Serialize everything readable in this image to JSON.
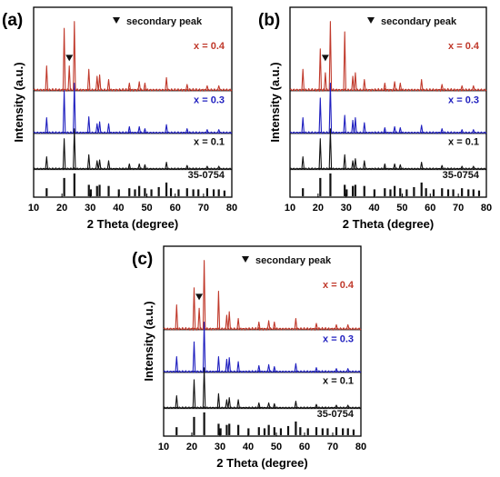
{
  "legend_marker": "▼",
  "chart_data": [
    {
      "type": "line",
      "panel_label": "(a)",
      "secondary_label": "secondary peak",
      "xlabel": "2 Theta (degree)",
      "ylabel": "Intensity (a.u.)",
      "xlim": [
        10,
        80
      ],
      "x_ticks": [
        "10",
        "20",
        "30",
        "40",
        "50",
        "60",
        "70",
        "80"
      ],
      "secondary_peak_x": 22.6,
      "series": [
        {
          "name": "x = 0.4",
          "color": "#c0392b",
          "peaks": [
            [
              14.6,
              0.35
            ],
            [
              20.8,
              0.9
            ],
            [
              22.6,
              0.35
            ],
            [
              24.4,
              1.0
            ],
            [
              29.5,
              0.3
            ],
            [
              32.4,
              0.2
            ],
            [
              33.3,
              0.22
            ],
            [
              36.5,
              0.15
            ],
            [
              43.8,
              0.1
            ],
            [
              47.3,
              0.12
            ],
            [
              49.3,
              0.1
            ],
            [
              56.9,
              0.18
            ],
            [
              64.2,
              0.08
            ],
            [
              71.3,
              0.06
            ],
            [
              75.4,
              0.06
            ]
          ]
        },
        {
          "name": "x = 0.3",
          "color": "#1f1fbf",
          "peaks": [
            [
              14.6,
              0.3
            ],
            [
              20.8,
              0.85
            ],
            [
              24.4,
              1.0
            ],
            [
              29.5,
              0.32
            ],
            [
              32.4,
              0.18
            ],
            [
              33.3,
              0.22
            ],
            [
              36.5,
              0.18
            ],
            [
              43.8,
              0.12
            ],
            [
              47.3,
              0.12
            ],
            [
              49.3,
              0.08
            ],
            [
              56.9,
              0.16
            ],
            [
              64.2,
              0.08
            ],
            [
              71.3,
              0.06
            ],
            [
              75.4,
              0.06
            ]
          ]
        },
        {
          "name": "x = 0.1",
          "color": "#111111",
          "peaks": [
            [
              14.6,
              0.3
            ],
            [
              20.8,
              0.75
            ],
            [
              24.4,
              1.0
            ],
            [
              29.5,
              0.35
            ],
            [
              32.4,
              0.2
            ],
            [
              33.3,
              0.22
            ],
            [
              36.5,
              0.2
            ],
            [
              43.8,
              0.12
            ],
            [
              47.3,
              0.12
            ],
            [
              49.3,
              0.1
            ],
            [
              56.9,
              0.16
            ],
            [
              64.2,
              0.08
            ],
            [
              71.3,
              0.06
            ],
            [
              75.4,
              0.06
            ]
          ]
        }
      ],
      "reference": {
        "name": "35-0754",
        "color": "#111111",
        "peaks": [
          [
            14.6,
            0.35
          ],
          [
            20.8,
            0.8
          ],
          [
            24.4,
            1.0
          ],
          [
            29.5,
            0.5
          ],
          [
            30.2,
            0.3
          ],
          [
            32.4,
            0.45
          ],
          [
            33.3,
            0.5
          ],
          [
            36.5,
            0.45
          ],
          [
            40.1,
            0.3
          ],
          [
            43.8,
            0.35
          ],
          [
            45.8,
            0.3
          ],
          [
            47.3,
            0.45
          ],
          [
            49.3,
            0.35
          ],
          [
            51.6,
            0.3
          ],
          [
            54.2,
            0.4
          ],
          [
            56.9,
            0.6
          ],
          [
            58.5,
            0.35
          ],
          [
            61.2,
            0.3
          ],
          [
            64.2,
            0.35
          ],
          [
            66.4,
            0.3
          ],
          [
            68.2,
            0.3
          ],
          [
            71.3,
            0.35
          ],
          [
            73.6,
            0.3
          ],
          [
            75.4,
            0.3
          ],
          [
            77.4,
            0.25
          ]
        ]
      }
    },
    {
      "type": "line",
      "panel_label": "(b)",
      "secondary_label": "secondary peak",
      "xlabel": "2 Theta (degree)",
      "ylabel": "Intensity (a.u.)",
      "xlim": [
        10,
        80
      ],
      "x_ticks": [
        "10",
        "20",
        "30",
        "40",
        "50",
        "60",
        "70",
        "80"
      ],
      "secondary_peak_x": 22.6,
      "series": [
        {
          "name": "x = 0.4",
          "color": "#c0392b",
          "peaks": [
            [
              14.6,
              0.3
            ],
            [
              20.8,
              0.6
            ],
            [
              22.6,
              0.25
            ],
            [
              24.4,
              1.0
            ],
            [
              29.5,
              0.85
            ],
            [
              32.4,
              0.2
            ],
            [
              33.3,
              0.25
            ],
            [
              36.5,
              0.15
            ],
            [
              43.8,
              0.1
            ],
            [
              47.3,
              0.12
            ],
            [
              49.3,
              0.1
            ],
            [
              56.9,
              0.15
            ],
            [
              64.2,
              0.08
            ],
            [
              71.3,
              0.06
            ],
            [
              75.4,
              0.06
            ]
          ]
        },
        {
          "name": "x = 0.3",
          "color": "#1f1fbf",
          "peaks": [
            [
              14.6,
              0.3
            ],
            [
              20.8,
              0.7
            ],
            [
              24.4,
              1.0
            ],
            [
              29.5,
              0.35
            ],
            [
              32.4,
              0.25
            ],
            [
              33.3,
              0.3
            ],
            [
              36.5,
              0.2
            ],
            [
              43.8,
              0.1
            ],
            [
              47.3,
              0.12
            ],
            [
              49.3,
              0.1
            ],
            [
              56.9,
              0.15
            ],
            [
              64.2,
              0.08
            ],
            [
              71.3,
              0.06
            ],
            [
              75.4,
              0.06
            ]
          ]
        },
        {
          "name": "x = 0.1",
          "color": "#111111",
          "peaks": [
            [
              14.6,
              0.3
            ],
            [
              20.8,
              0.75
            ],
            [
              24.4,
              1.0
            ],
            [
              29.5,
              0.35
            ],
            [
              32.4,
              0.2
            ],
            [
              33.3,
              0.25
            ],
            [
              36.5,
              0.2
            ],
            [
              43.8,
              0.12
            ],
            [
              47.3,
              0.12
            ],
            [
              49.3,
              0.1
            ],
            [
              56.9,
              0.16
            ],
            [
              64.2,
              0.08
            ],
            [
              71.3,
              0.06
            ],
            [
              75.4,
              0.06
            ]
          ]
        }
      ],
      "reference": {
        "name": "35-0754",
        "color": "#111111",
        "peaks": [
          [
            14.6,
            0.35
          ],
          [
            20.8,
            0.8
          ],
          [
            24.4,
            1.0
          ],
          [
            29.5,
            0.5
          ],
          [
            30.2,
            0.3
          ],
          [
            32.4,
            0.45
          ],
          [
            33.3,
            0.5
          ],
          [
            36.5,
            0.45
          ],
          [
            40.1,
            0.3
          ],
          [
            43.8,
            0.35
          ],
          [
            45.8,
            0.3
          ],
          [
            47.3,
            0.45
          ],
          [
            49.3,
            0.35
          ],
          [
            51.6,
            0.3
          ],
          [
            54.2,
            0.4
          ],
          [
            56.9,
            0.6
          ],
          [
            58.5,
            0.35
          ],
          [
            61.2,
            0.3
          ],
          [
            64.2,
            0.35
          ],
          [
            66.4,
            0.3
          ],
          [
            68.2,
            0.3
          ],
          [
            71.3,
            0.35
          ],
          [
            73.6,
            0.3
          ],
          [
            75.4,
            0.3
          ],
          [
            77.4,
            0.25
          ]
        ]
      }
    },
    {
      "type": "line",
      "panel_label": "(c)",
      "secondary_label": "secondary peak",
      "xlabel": "2 Theta (degree)",
      "ylabel": "Intensity (a.u.)",
      "xlim": [
        10,
        80
      ],
      "x_ticks": [
        "10",
        "20",
        "30",
        "40",
        "50",
        "60",
        "70",
        "80"
      ],
      "secondary_peak_x": 22.6,
      "series": [
        {
          "name": "x = 0.4",
          "color": "#c0392b",
          "peaks": [
            [
              14.6,
              0.35
            ],
            [
              20.8,
              0.6
            ],
            [
              22.6,
              0.3
            ],
            [
              24.4,
              1.0
            ],
            [
              29.5,
              0.55
            ],
            [
              32.4,
              0.2
            ],
            [
              33.3,
              0.25
            ],
            [
              36.5,
              0.15
            ],
            [
              43.8,
              0.1
            ],
            [
              47.3,
              0.12
            ],
            [
              49.3,
              0.1
            ],
            [
              56.9,
              0.15
            ],
            [
              64.2,
              0.08
            ],
            [
              71.3,
              0.06
            ],
            [
              75.4,
              0.06
            ]
          ]
        },
        {
          "name": "x = 0.3",
          "color": "#1f1fbf",
          "peaks": [
            [
              14.6,
              0.3
            ],
            [
              20.8,
              0.6
            ],
            [
              24.4,
              1.0
            ],
            [
              29.5,
              0.3
            ],
            [
              32.4,
              0.25
            ],
            [
              33.3,
              0.28
            ],
            [
              36.5,
              0.2
            ],
            [
              43.8,
              0.12
            ],
            [
              47.3,
              0.14
            ],
            [
              49.3,
              0.1
            ],
            [
              56.9,
              0.16
            ],
            [
              64.2,
              0.08
            ],
            [
              71.3,
              0.06
            ],
            [
              75.4,
              0.06
            ]
          ]
        },
        {
          "name": "x = 0.1",
          "color": "#111111",
          "peaks": [
            [
              14.6,
              0.3
            ],
            [
              20.8,
              0.7
            ],
            [
              24.4,
              1.0
            ],
            [
              29.5,
              0.35
            ],
            [
              32.4,
              0.2
            ],
            [
              33.3,
              0.25
            ],
            [
              36.5,
              0.2
            ],
            [
              43.8,
              0.12
            ],
            [
              47.3,
              0.12
            ],
            [
              49.3,
              0.1
            ],
            [
              56.9,
              0.16
            ],
            [
              64.2,
              0.08
            ],
            [
              71.3,
              0.06
            ],
            [
              75.4,
              0.06
            ]
          ]
        }
      ],
      "reference": {
        "name": "35-0754",
        "color": "#111111",
        "peaks": [
          [
            14.6,
            0.35
          ],
          [
            20.8,
            0.8
          ],
          [
            24.4,
            1.0
          ],
          [
            29.5,
            0.5
          ],
          [
            30.2,
            0.3
          ],
          [
            32.4,
            0.45
          ],
          [
            33.3,
            0.5
          ],
          [
            36.5,
            0.45
          ],
          [
            40.1,
            0.3
          ],
          [
            43.8,
            0.35
          ],
          [
            45.8,
            0.3
          ],
          [
            47.3,
            0.45
          ],
          [
            49.3,
            0.35
          ],
          [
            51.6,
            0.3
          ],
          [
            54.2,
            0.4
          ],
          [
            56.9,
            0.6
          ],
          [
            58.5,
            0.35
          ],
          [
            61.2,
            0.3
          ],
          [
            64.2,
            0.35
          ],
          [
            66.4,
            0.3
          ],
          [
            68.2,
            0.3
          ],
          [
            71.3,
            0.35
          ],
          [
            73.6,
            0.3
          ],
          [
            75.4,
            0.3
          ],
          [
            77.4,
            0.25
          ]
        ]
      }
    }
  ]
}
